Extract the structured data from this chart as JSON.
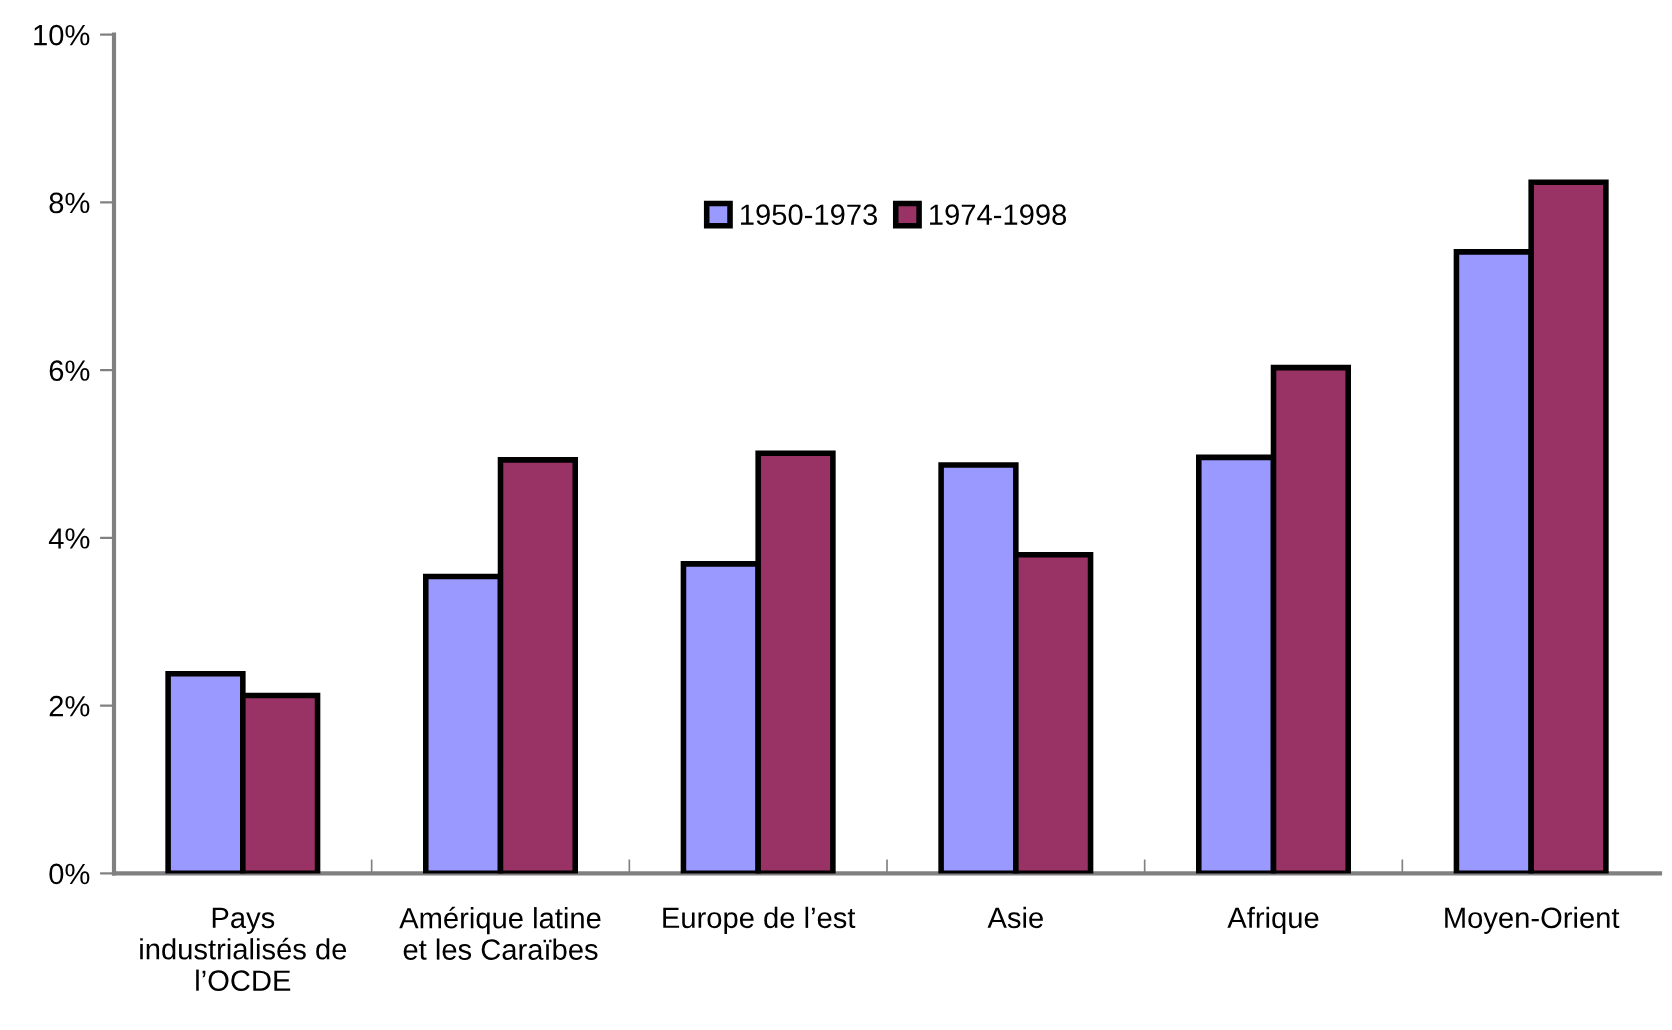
{
  "chart_data": {
    "type": "bar",
    "categories": [
      "Pays\nindustrialisés de\nl’OCDE",
      "Amérique latine\net les Caraïbes",
      "Europe de l’est",
      "Asie",
      "Afrique",
      "Moyen-Orient"
    ],
    "series": [
      {
        "name": "1950-1973",
        "color": "#9999ff",
        "values": [
          2.38,
          3.54,
          3.69,
          4.87,
          4.96,
          7.41
        ]
      },
      {
        "name": "1974-1998",
        "color": "#993366",
        "values": [
          2.12,
          4.93,
          5.01,
          3.8,
          6.03,
          8.24
        ]
      }
    ],
    "ylim": [
      0,
      10
    ],
    "yticks": [
      {
        "value": 0,
        "label": "0%"
      },
      {
        "value": 2,
        "label": "2%"
      },
      {
        "value": 4,
        "label": "4%"
      },
      {
        "value": 6,
        "label": "6%"
      },
      {
        "value": 8,
        "label": "8%"
      },
      {
        "value": 10,
        "label": "10%"
      }
    ],
    "grid": false,
    "legend": "top"
  }
}
